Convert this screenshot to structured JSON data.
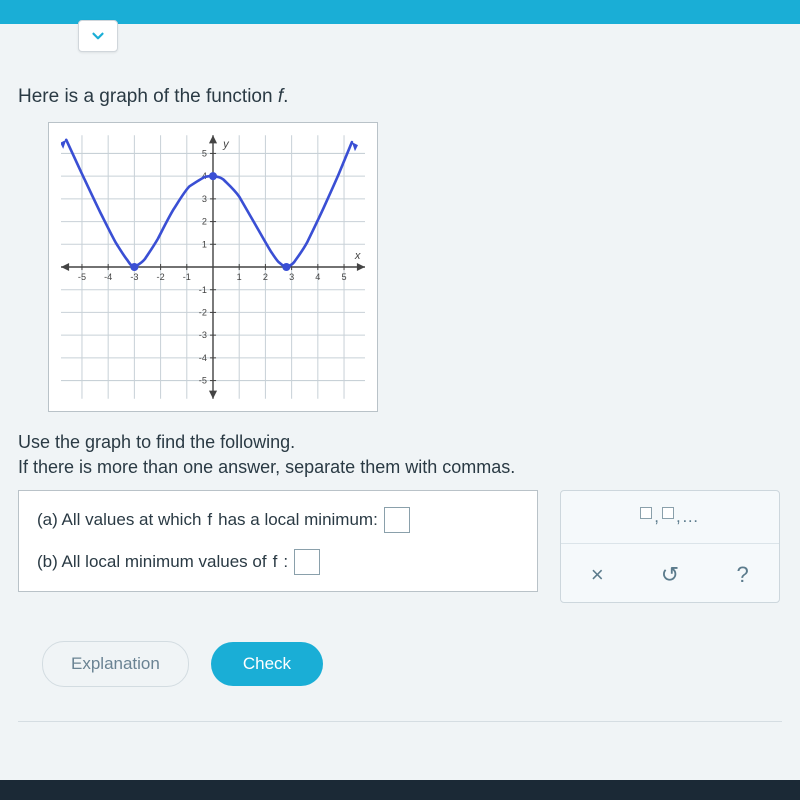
{
  "prompt": "Here is a graph of the function ",
  "prompt_fn": "f",
  "prompt_end": ".",
  "graph": {
    "axis_label_x": "x",
    "axis_label_y": "y",
    "xlim": [
      -5.8,
      5.8
    ],
    "ylim": [
      -5.8,
      5.8
    ],
    "ticks": [
      -5,
      -4,
      -3,
      -2,
      -1,
      1,
      2,
      3,
      4,
      5
    ],
    "grid_color": "#c8d1d7",
    "axis_color": "#444",
    "curve_color": "#3a4fd4",
    "curve_width": 2.6,
    "curve_points": [
      [
        -5.6,
        5.6
      ],
      [
        -5.0,
        4.1
      ],
      [
        -4.3,
        2.4
      ],
      [
        -3.7,
        1.05
      ],
      [
        -3.3,
        0.35
      ],
      [
        -3.0,
        0.0
      ],
      [
        -2.6,
        0.35
      ],
      [
        -2.1,
        1.25
      ],
      [
        -1.5,
        2.55
      ],
      [
        -0.9,
        3.55
      ],
      [
        -0.3,
        3.97
      ],
      [
        0.0,
        4.0
      ],
      [
        0.4,
        3.85
      ],
      [
        1.0,
        3.1
      ],
      [
        1.6,
        1.9
      ],
      [
        2.2,
        0.7
      ],
      [
        2.5,
        0.22
      ],
      [
        2.8,
        0.0
      ],
      [
        3.1,
        0.22
      ],
      [
        3.6,
        1.1
      ],
      [
        4.2,
        2.55
      ],
      [
        4.8,
        4.1
      ],
      [
        5.3,
        5.5
      ]
    ],
    "filled_dots": [
      [
        -3,
        0
      ],
      [
        0,
        4
      ],
      [
        2.8,
        0
      ]
    ],
    "arrows": [
      [
        -5.6,
        5.6
      ],
      [
        5.3,
        5.5
      ]
    ]
  },
  "instructions_line1": "Use the graph to find the following.",
  "instructions_line2": "If there is more than one answer, separate them with commas.",
  "qa": {
    "a_prefix": "(a) All values at which ",
    "a_fn": "f",
    "a_suffix": " has a local minimum:",
    "b_prefix": "(b) All local minimum values of ",
    "b_fn": "f",
    "b_suffix": ":"
  },
  "tools": {
    "list_hint": ",",
    "ellipsis": "…",
    "clear": "×",
    "reset": "↺",
    "help": "?"
  },
  "buttons": {
    "explanation": "Explanation",
    "check": "Check"
  }
}
